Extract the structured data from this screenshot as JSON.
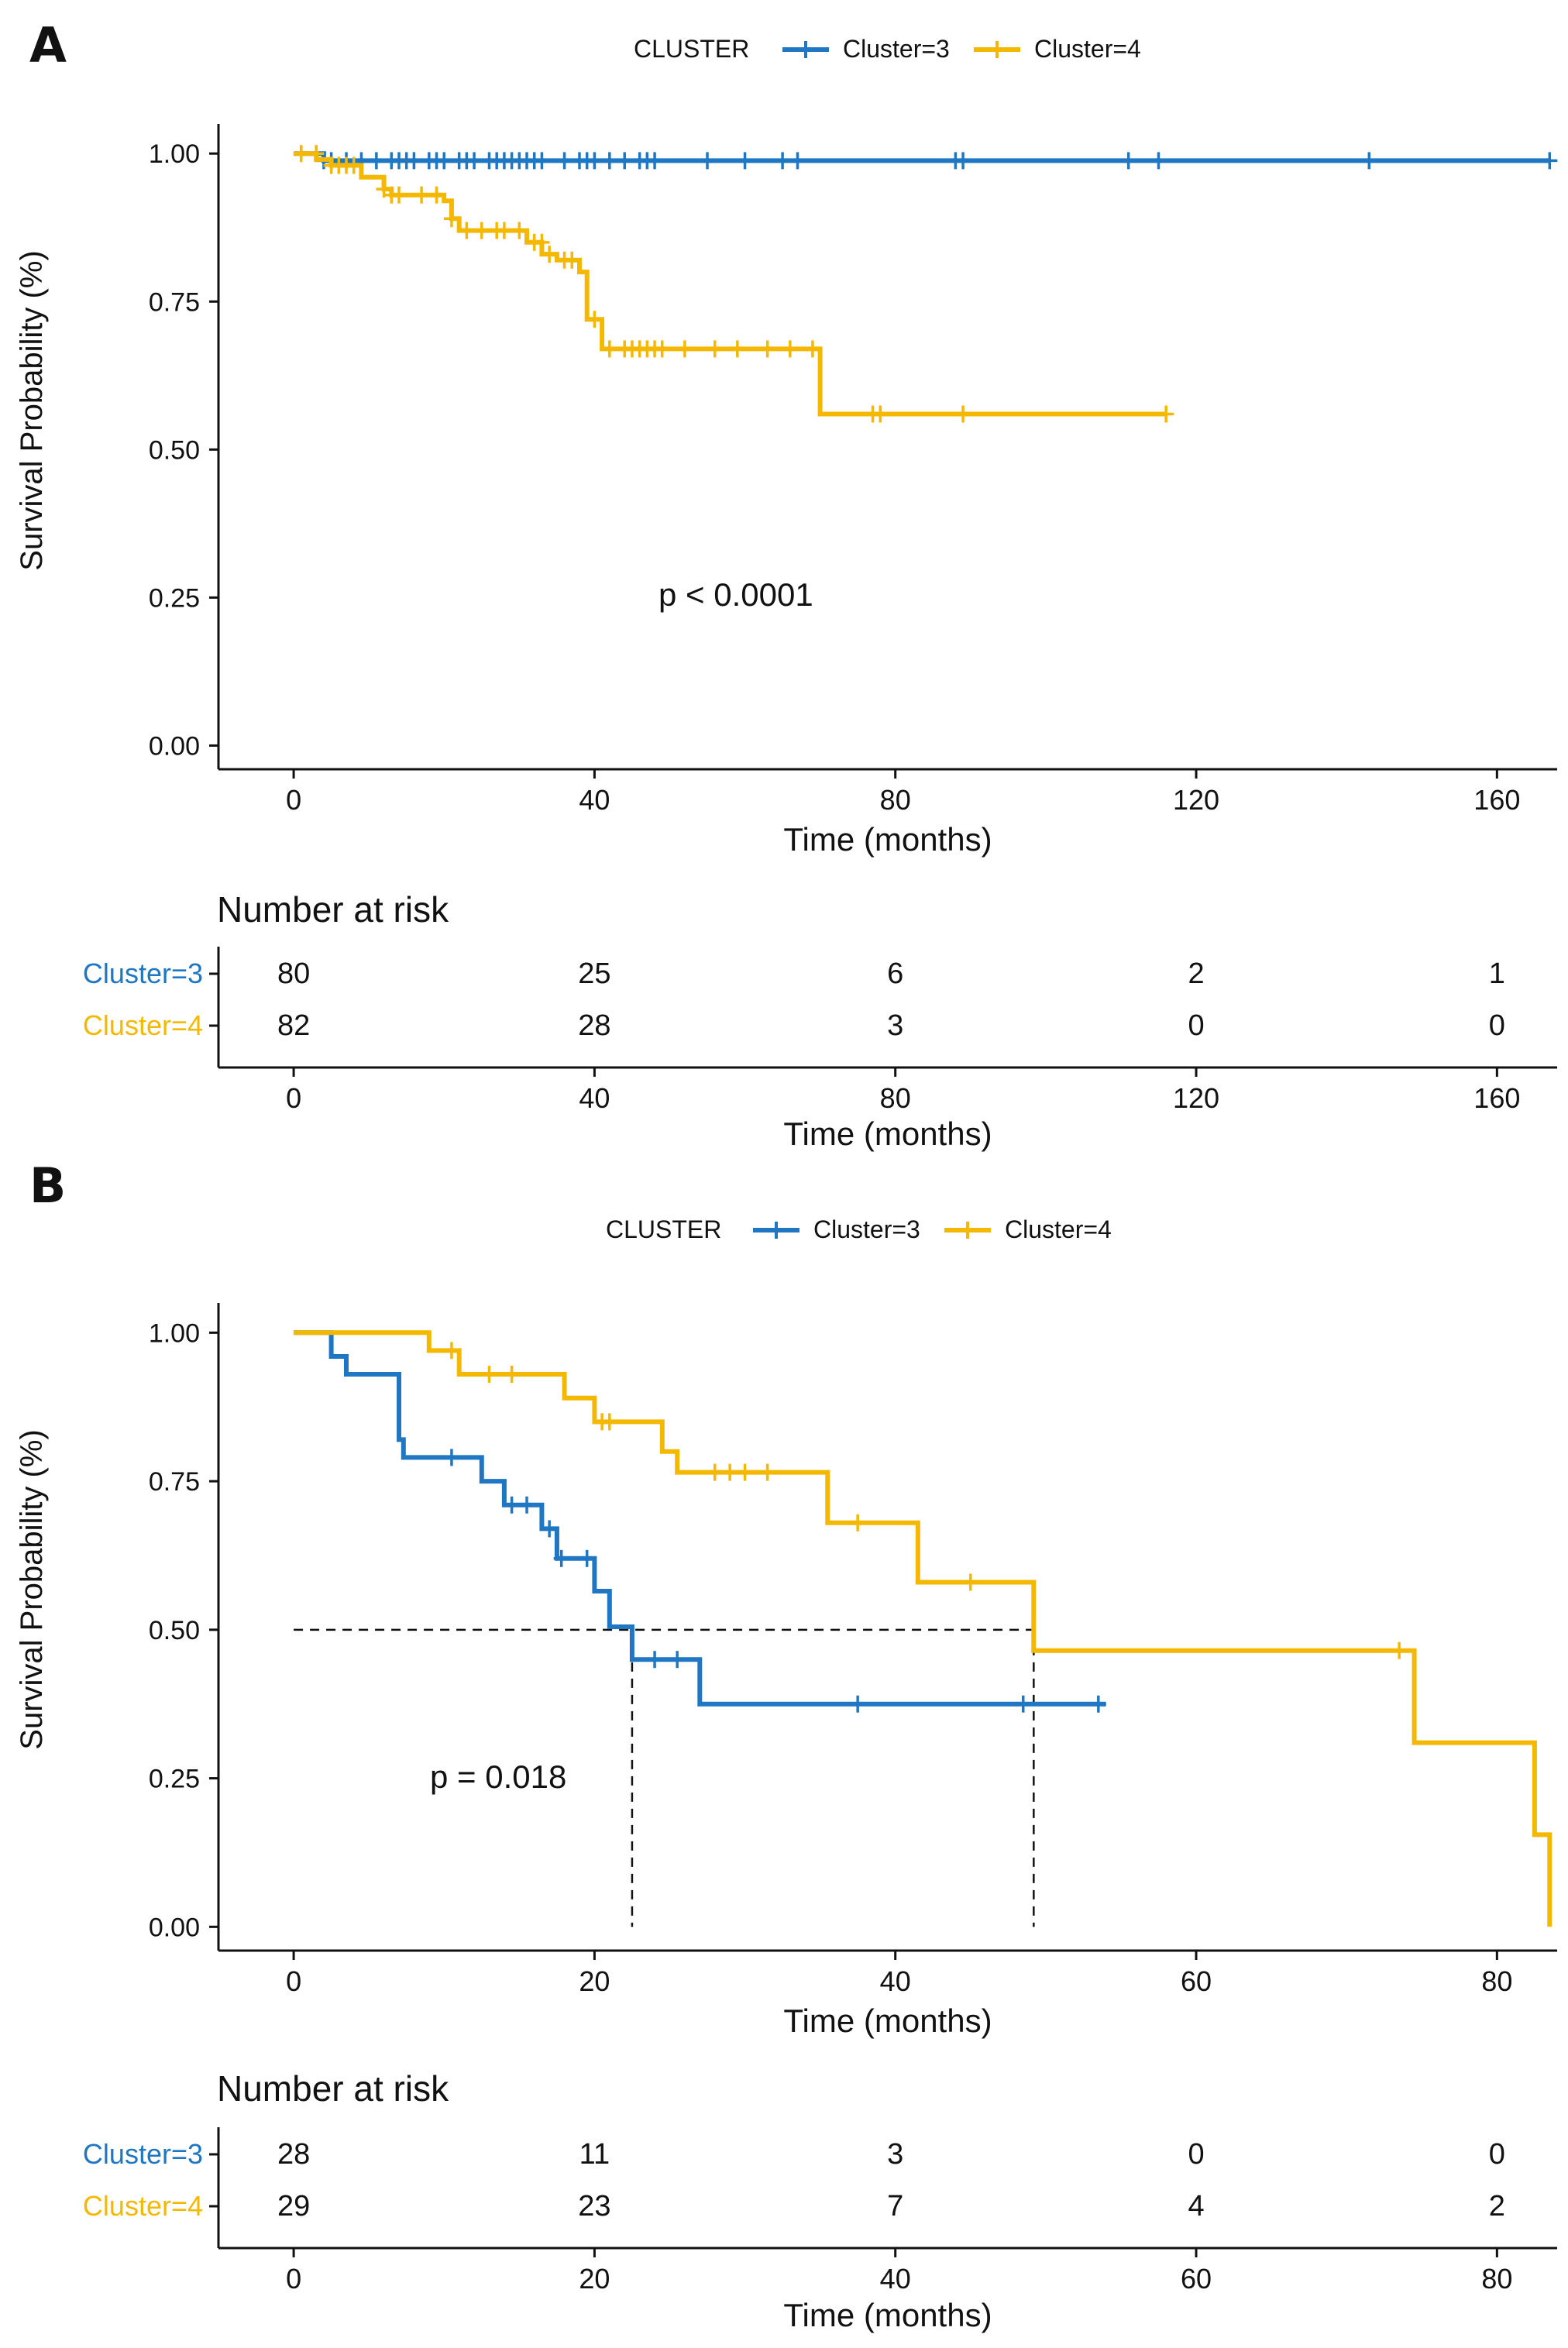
{
  "colors": {
    "cluster3": "#1f77c4",
    "cluster4": "#f5b800",
    "axis": "#111111",
    "text": "#111111"
  },
  "chart_data": [
    {
      "panel": "A",
      "type": "line",
      "subtype": "kaplan-meier",
      "legend_title": "CLUSTER",
      "legend_position": "top",
      "xlabel": "Time (months)",
      "ylabel": "Survival Probability (%)",
      "xlim": [
        -10,
        168
      ],
      "ylim": [
        -0.04,
        1.05
      ],
      "xticks": [
        0,
        40,
        80,
        120,
        160
      ],
      "yticks": [
        "0.00",
        "0.25",
        "0.50",
        "0.75",
        "1.00"
      ],
      "pvalue": "p < 0.0001",
      "pvalue_pos": [
        60,
        0.25
      ],
      "median_lines": [],
      "series": [
        {
          "name": "Cluster=3",
          "color": "#1f77c4",
          "steps": [
            [
              0,
              1.0
            ],
            [
              4,
              1.0
            ],
            [
              4,
              0.988
            ],
            [
              167,
              0.988
            ]
          ],
          "censor": [
            [
              4,
              0.988
            ],
            [
              5,
              0.988
            ],
            [
              7,
              0.988
            ],
            [
              9,
              0.988
            ],
            [
              11,
              0.988
            ],
            [
              13,
              0.988
            ],
            [
              14,
              0.988
            ],
            [
              15,
              0.988
            ],
            [
              16,
              0.988
            ],
            [
              18,
              0.988
            ],
            [
              19,
              0.988
            ],
            [
              20,
              0.988
            ],
            [
              22,
              0.988
            ],
            [
              23,
              0.988
            ],
            [
              24,
              0.988
            ],
            [
              26,
              0.988
            ],
            [
              27,
              0.988
            ],
            [
              28,
              0.988
            ],
            [
              29,
              0.988
            ],
            [
              30,
              0.988
            ],
            [
              31,
              0.988
            ],
            [
              32,
              0.988
            ],
            [
              33,
              0.988
            ],
            [
              36,
              0.988
            ],
            [
              38,
              0.988
            ],
            [
              39,
              0.988
            ],
            [
              40,
              0.988
            ],
            [
              42,
              0.988
            ],
            [
              44,
              0.988
            ],
            [
              46,
              0.988
            ],
            [
              47,
              0.988
            ],
            [
              48,
              0.988
            ],
            [
              55,
              0.988
            ],
            [
              60,
              0.988
            ],
            [
              65,
              0.988
            ],
            [
              67,
              0.988
            ],
            [
              88,
              0.988
            ],
            [
              89,
              0.988
            ],
            [
              111,
              0.988
            ],
            [
              115,
              0.988
            ],
            [
              143,
              0.988
            ],
            [
              167,
              0.988
            ]
          ]
        },
        {
          "name": "Cluster=4",
          "color": "#f5b800",
          "steps": [
            [
              0,
              1.0
            ],
            [
              3,
              1.0
            ],
            [
              3,
              0.99
            ],
            [
              5,
              0.99
            ],
            [
              5,
              0.98
            ],
            [
              9,
              0.98
            ],
            [
              9,
              0.96
            ],
            [
              12,
              0.96
            ],
            [
              12,
              0.94
            ],
            [
              13,
              0.94
            ],
            [
              13,
              0.93
            ],
            [
              20,
              0.93
            ],
            [
              20,
              0.92
            ],
            [
              21,
              0.92
            ],
            [
              21,
              0.89
            ],
            [
              22,
              0.89
            ],
            [
              22,
              0.87
            ],
            [
              31,
              0.87
            ],
            [
              31,
              0.85
            ],
            [
              33,
              0.85
            ],
            [
              33,
              0.83
            ],
            [
              35,
              0.83
            ],
            [
              35,
              0.82
            ],
            [
              38,
              0.82
            ],
            [
              38,
              0.8
            ],
            [
              39,
              0.8
            ],
            [
              39,
              0.72
            ],
            [
              41,
              0.72
            ],
            [
              41,
              0.67
            ],
            [
              70,
              0.67
            ],
            [
              70,
              0.56
            ],
            [
              116,
              0.56
            ]
          ],
          "censor": [
            [
              1,
              1.0
            ],
            [
              3,
              1.0
            ],
            [
              5,
              0.98
            ],
            [
              6,
              0.98
            ],
            [
              7,
              0.98
            ],
            [
              8,
              0.98
            ],
            [
              12,
              0.94
            ],
            [
              13,
              0.93
            ],
            [
              14,
              0.93
            ],
            [
              17,
              0.93
            ],
            [
              19,
              0.93
            ],
            [
              21,
              0.89
            ],
            [
              23,
              0.87
            ],
            [
              25,
              0.87
            ],
            [
              27,
              0.87
            ],
            [
              28,
              0.87
            ],
            [
              30,
              0.87
            ],
            [
              32,
              0.85
            ],
            [
              33,
              0.85
            ],
            [
              34,
              0.83
            ],
            [
              36,
              0.82
            ],
            [
              37,
              0.82
            ],
            [
              40,
              0.72
            ],
            [
              42,
              0.67
            ],
            [
              44,
              0.67
            ],
            [
              45,
              0.67
            ],
            [
              46,
              0.67
            ],
            [
              47,
              0.67
            ],
            [
              48,
              0.67
            ],
            [
              49,
              0.67
            ],
            [
              52,
              0.67
            ],
            [
              56,
              0.67
            ],
            [
              59,
              0.67
            ],
            [
              63,
              0.67
            ],
            [
              66,
              0.67
            ],
            [
              69,
              0.67
            ],
            [
              77,
              0.56
            ],
            [
              78,
              0.56
            ],
            [
              89,
              0.56
            ],
            [
              116,
              0.56
            ]
          ]
        }
      ],
      "risk_table": {
        "title": "Number at risk",
        "xticks": [
          0,
          40,
          80,
          120,
          160
        ],
        "xlabel": "Time (months)",
        "rows": [
          {
            "label": "Cluster=3",
            "color": "#1f77c4",
            "values": [
              80,
              25,
              6,
              2,
              1
            ]
          },
          {
            "label": "Cluster=4",
            "color": "#f5b800",
            "values": [
              82,
              28,
              3,
              0,
              0
            ]
          }
        ]
      }
    },
    {
      "panel": "B",
      "type": "line",
      "subtype": "kaplan-meier",
      "legend_title": "CLUSTER",
      "legend_position": "top",
      "xlabel": "Time (months)",
      "ylabel": "Survival Probability (%)",
      "xlim": [
        -5,
        84
      ],
      "ylim": [
        -0.04,
        1.05
      ],
      "xticks": [
        0,
        20,
        40,
        60,
        80
      ],
      "yticks": [
        "0.00",
        "0.25",
        "0.50",
        "0.75",
        "1.00"
      ],
      "pvalue": "p = 0.018",
      "pvalue_pos": [
        13.5,
        0.245
      ],
      "median_lines": [
        {
          "x": 22.5
        },
        {
          "x": 49.2
        }
      ],
      "median_hline": [
        0,
        49.2
      ],
      "series": [
        {
          "name": "Cluster=3",
          "color": "#1f77c4",
          "steps": [
            [
              0,
              1.0
            ],
            [
              2.5,
              1.0
            ],
            [
              2.5,
              0.96
            ],
            [
              3.5,
              0.96
            ],
            [
              3.5,
              0.93
            ],
            [
              7,
              0.93
            ],
            [
              7,
              0.82
            ],
            [
              7.3,
              0.82
            ],
            [
              7.3,
              0.79
            ],
            [
              12.5,
              0.79
            ],
            [
              12.5,
              0.75
            ],
            [
              14,
              0.75
            ],
            [
              14,
              0.71
            ],
            [
              16.5,
              0.71
            ],
            [
              16.5,
              0.67
            ],
            [
              17.5,
              0.67
            ],
            [
              17.5,
              0.62
            ],
            [
              20,
              0.62
            ],
            [
              20,
              0.565
            ],
            [
              21,
              0.565
            ],
            [
              21,
              0.505
            ],
            [
              22.5,
              0.505
            ],
            [
              22.5,
              0.45
            ],
            [
              27,
              0.45
            ],
            [
              27,
              0.375
            ],
            [
              54,
              0.375
            ]
          ],
          "censor": [
            [
              10.5,
              0.79
            ],
            [
              14.5,
              0.71
            ],
            [
              15.5,
              0.71
            ],
            [
              17,
              0.67
            ],
            [
              17.8,
              0.62
            ],
            [
              19.5,
              0.62
            ],
            [
              24,
              0.45
            ],
            [
              25.5,
              0.45
            ],
            [
              37.5,
              0.375
            ],
            [
              48.5,
              0.375
            ],
            [
              53.5,
              0.375
            ]
          ]
        },
        {
          "name": "Cluster=4",
          "color": "#f5b800",
          "steps": [
            [
              0,
              1.0
            ],
            [
              9,
              1.0
            ],
            [
              9,
              0.97
            ],
            [
              11,
              0.97
            ],
            [
              11,
              0.93
            ],
            [
              18,
              0.93
            ],
            [
              18,
              0.89
            ],
            [
              20,
              0.89
            ],
            [
              20,
              0.85
            ],
            [
              24.5,
              0.85
            ],
            [
              24.5,
              0.8
            ],
            [
              25.5,
              0.8
            ],
            [
              25.5,
              0.765
            ],
            [
              35.5,
              0.765
            ],
            [
              35.5,
              0.68
            ],
            [
              41.5,
              0.68
            ],
            [
              41.5,
              0.58
            ],
            [
              49.2,
              0.58
            ],
            [
              49.2,
              0.465
            ],
            [
              74.5,
              0.465
            ],
            [
              74.5,
              0.31
            ],
            [
              82.5,
              0.31
            ],
            [
              82.5,
              0.155
            ],
            [
              83.5,
              0.155
            ],
            [
              83.5,
              0.0
            ]
          ],
          "censor": [
            [
              10.5,
              0.97
            ],
            [
              13,
              0.93
            ],
            [
              14.5,
              0.93
            ],
            [
              20.5,
              0.85
            ],
            [
              21,
              0.85
            ],
            [
              28,
              0.765
            ],
            [
              29,
              0.765
            ],
            [
              30,
              0.765
            ],
            [
              31.5,
              0.765
            ],
            [
              37.5,
              0.68
            ],
            [
              45,
              0.58
            ],
            [
              73.5,
              0.465
            ]
          ]
        }
      ],
      "risk_table": {
        "title": "Number at risk",
        "xticks": [
          0,
          20,
          40,
          60,
          80
        ],
        "xlabel": "Time (months)",
        "rows": [
          {
            "label": "Cluster=3",
            "color": "#1f77c4",
            "values": [
              28,
              11,
              3,
              0,
              0
            ]
          },
          {
            "label": "Cluster=4",
            "color": "#f5b800",
            "values": [
              29,
              23,
              7,
              4,
              2
            ]
          }
        ]
      }
    }
  ]
}
